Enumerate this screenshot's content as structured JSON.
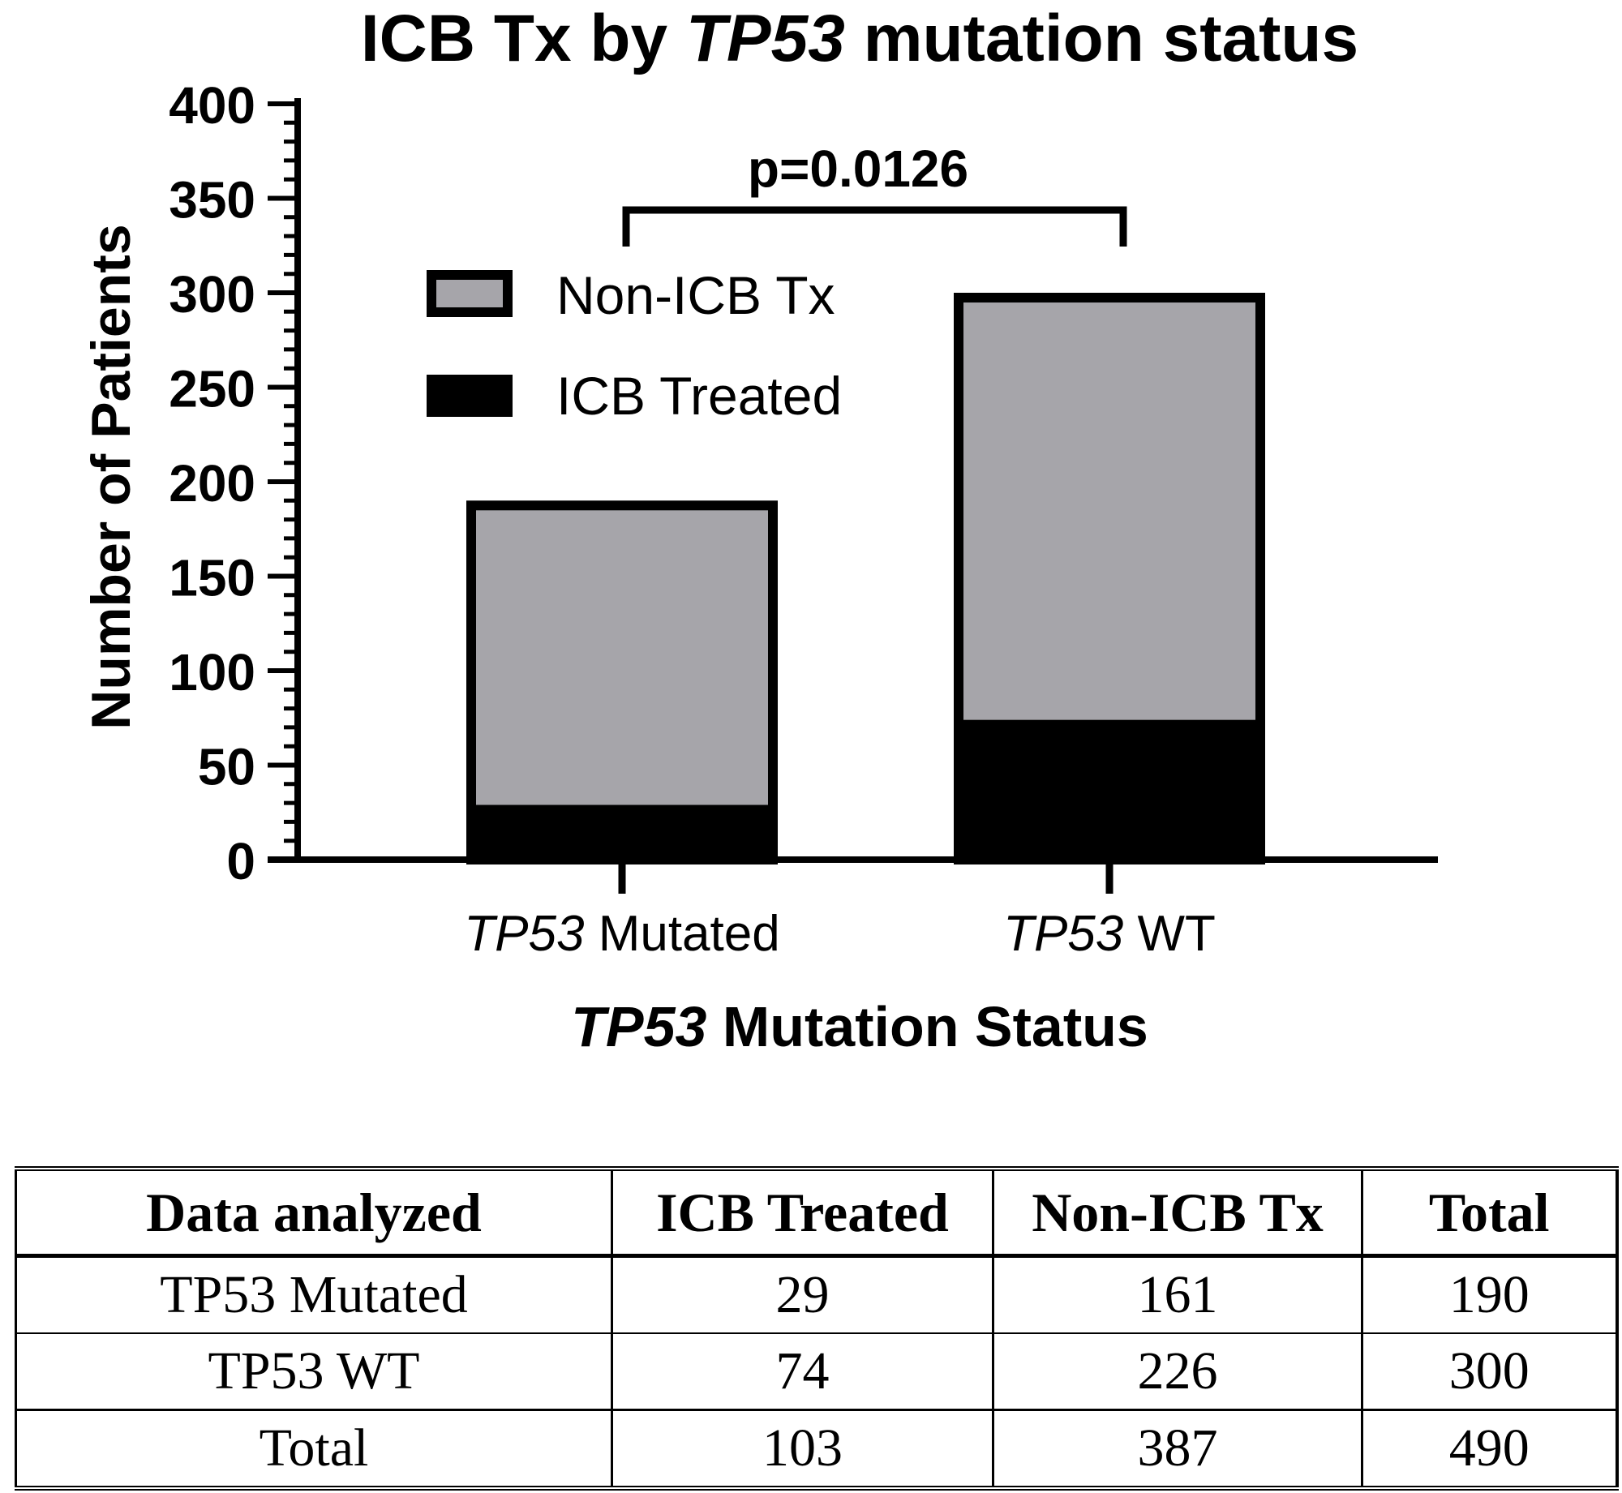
{
  "chart_data": {
    "type": "bar",
    "stacked": true,
    "title_parts": [
      "ICB Tx by ",
      "TP53",
      " mutation status"
    ],
    "ylabel": "Number of Patients",
    "xlabel_parts": [
      "TP53",
      " Mutation Status"
    ],
    "ylim": [
      0,
      400
    ],
    "yticks": [
      0,
      50,
      100,
      150,
      200,
      250,
      300,
      350,
      400
    ],
    "categories": [
      {
        "italic": "TP53",
        "rest": " Mutated"
      },
      {
        "italic": "TP53",
        "rest": " WT"
      }
    ],
    "series": [
      {
        "name": "ICB Treated",
        "values": [
          29,
          74
        ],
        "color": "#000000"
      },
      {
        "name": "Non-ICB Tx",
        "values": [
          161,
          226
        ],
        "color": "#a6a5aa"
      }
    ],
    "legend_order": [
      "Non-ICB Tx",
      "ICB Treated"
    ],
    "legend_position": "upper-left",
    "annotation": {
      "text": "p=0.0126",
      "type": "significance-bracket",
      "between": [
        0,
        1
      ]
    },
    "grid": false
  },
  "table": {
    "headers": [
      "Data analyzed",
      "ICB Treated",
      "Non-ICB Tx",
      "Total"
    ],
    "rows": [
      [
        "TP53 Mutated",
        "29",
        "161",
        "190"
      ],
      [
        "TP53 WT",
        "74",
        "226",
        "300"
      ],
      [
        "Total",
        "103",
        "387",
        "490"
      ]
    ]
  }
}
